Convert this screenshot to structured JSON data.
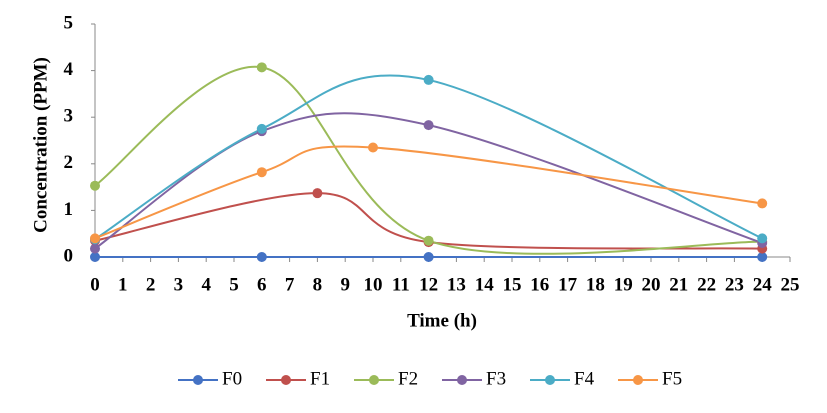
{
  "chart_data": {
    "type": "line",
    "smooth": true,
    "x_label": "Time (h)",
    "y_label": "Concentration  (PPM)",
    "xlim": [
      0,
      25
    ],
    "xticks": [
      0,
      1,
      2,
      3,
      4,
      5,
      6,
      7,
      8,
      9,
      10,
      11,
      12,
      13,
      14,
      15,
      16,
      17,
      18,
      19,
      20,
      21,
      22,
      23,
      24,
      25
    ],
    "ylim": [
      0,
      5
    ],
    "yticks": [
      0,
      1,
      2,
      3,
      4,
      5
    ],
    "grid": false,
    "legend": "bottom",
    "series": [
      {
        "name": "F0",
        "color": "#4472c4",
        "x": [
          0,
          6,
          12,
          24
        ],
        "values": [
          0,
          0,
          0,
          0
        ]
      },
      {
        "name": "F1",
        "color": "#c0504d",
        "x": [
          0,
          8,
          12,
          24
        ],
        "values": [
          0.35,
          1.37,
          0.32,
          0.18
        ]
      },
      {
        "name": "F2",
        "color": "#9bbb59",
        "x": [
          0,
          6,
          12,
          24
        ],
        "values": [
          1.53,
          4.07,
          0.35,
          0.33
        ]
      },
      {
        "name": "F3",
        "color": "#8064a2",
        "x": [
          0,
          6,
          12,
          24
        ],
        "values": [
          0.18,
          2.7,
          2.83,
          0.3
        ]
      },
      {
        "name": "F4",
        "color": "#4bacc6",
        "x": [
          0,
          6,
          12,
          24
        ],
        "values": [
          0.38,
          2.75,
          3.8,
          0.4
        ]
      },
      {
        "name": "F5",
        "color": "#f79646",
        "x": [
          0,
          6,
          10,
          24
        ],
        "values": [
          0.4,
          1.82,
          2.35,
          1.15
        ]
      }
    ]
  }
}
